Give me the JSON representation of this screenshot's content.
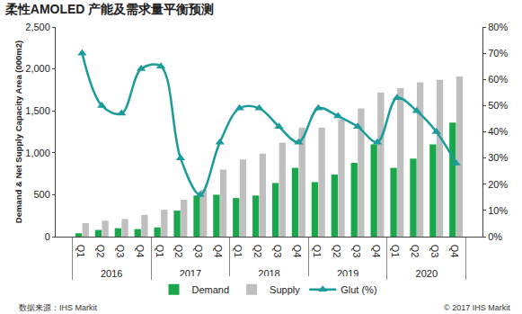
{
  "chart_data": {
    "type": "bar",
    "title": "柔性AMOLED 产能及需求量平衡预测",
    "y_label": "Demand & Net Supply Capacity Area (000m2)",
    "categories": [
      "Q1",
      "Q2",
      "Q3",
      "Q4",
      "Q1",
      "Q2",
      "Q3",
      "Q4",
      "Q1",
      "Q2",
      "Q3",
      "Q4",
      "Q1",
      "Q2",
      "Q3",
      "Q4",
      "Q1",
      "Q2",
      "Q3",
      "Q4"
    ],
    "category_groups": [
      "2016",
      "2016",
      "2016",
      "2016",
      "2017",
      "2017",
      "2017",
      "2017",
      "2018",
      "2018",
      "2018",
      "2018",
      "2019",
      "2019",
      "2019",
      "2019",
      "2020",
      "2020",
      "2020",
      "2020"
    ],
    "series": [
      {
        "name": "Demand",
        "type": "bar",
        "color": "#1aa64a",
        "values": [
          40,
          80,
          100,
          90,
          110,
          310,
          490,
          500,
          460,
          490,
          640,
          820,
          650,
          740,
          880,
          1100,
          820,
          930,
          1100,
          1360
        ]
      },
      {
        "name": "Supply",
        "type": "bar",
        "color": "#bfbfbf",
        "values": [
          160,
          190,
          210,
          260,
          320,
          440,
          560,
          800,
          920,
          990,
          1120,
          1300,
          1300,
          1400,
          1530,
          1720,
          1770,
          1840,
          1870,
          1910
        ]
      },
      {
        "name": "Glut (%)",
        "type": "line",
        "axis": "y2",
        "color": "#1b9c9a",
        "marker": "triangle-up",
        "line_style": "smooth",
        "values": [
          70,
          50,
          47,
          64,
          65,
          30,
          16,
          36,
          49,
          49,
          42,
          36,
          49,
          46,
          42,
          36,
          53,
          48,
          40,
          28
        ]
      }
    ],
    "ylim": [
      0,
      2500
    ],
    "yticks": [
      0,
      500,
      {
        "value": 1000,
        "label": "1,000"
      },
      {
        "value": 1500,
        "label": "1,500"
      },
      {
        "value": 2000,
        "label": "2,000"
      },
      {
        "value": 2500,
        "label": "2,500"
      }
    ],
    "y2lim": [
      0,
      80
    ],
    "y2ticks": [
      {
        "value": 0,
        "label": "0%"
      },
      {
        "value": 10,
        "label": "10%"
      },
      {
        "value": 20,
        "label": "20%"
      },
      {
        "value": 30,
        "label": "30%"
      },
      {
        "value": 40,
        "label": "40%"
      },
      {
        "value": 50,
        "label": "50%"
      },
      {
        "value": 60,
        "label": "60%"
      },
      {
        "value": 70,
        "label": "70%"
      },
      {
        "value": 80,
        "label": "80%"
      }
    ],
    "grid": false,
    "legend": "bottom",
    "notes": [
      "数据来源：IHS Markit",
      "© 2017 IHS Markit"
    ]
  }
}
